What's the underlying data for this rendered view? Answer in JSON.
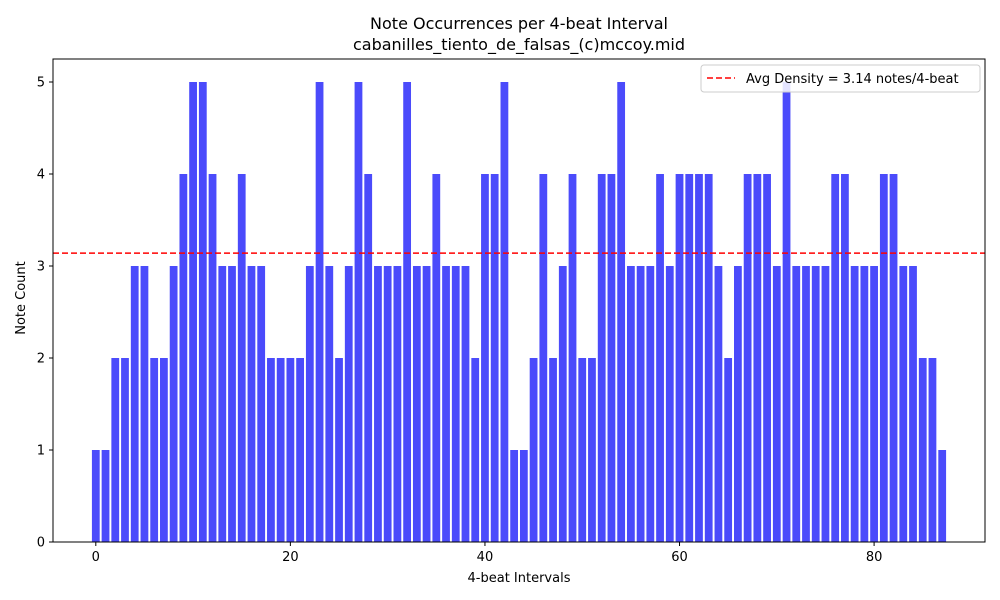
{
  "chart_data": {
    "type": "bar",
    "title": "Note Occurrences per 4-beat Interval",
    "subtitle": "cabanilles_tiento_de_falsas_(c)mccoy.mid",
    "xlabel": "4-beat Intervals",
    "ylabel": "Note Count",
    "xlim": [
      -4.4,
      91.4
    ],
    "ylim": [
      0,
      5.25
    ],
    "xticks": [
      0,
      20,
      40,
      60,
      80
    ],
    "yticks": [
      0,
      1,
      2,
      3,
      4,
      5
    ],
    "x": [
      0,
      1,
      2,
      3,
      4,
      5,
      6,
      7,
      8,
      9,
      10,
      11,
      12,
      13,
      14,
      15,
      16,
      17,
      18,
      19,
      20,
      21,
      22,
      23,
      24,
      25,
      26,
      27,
      28,
      29,
      30,
      31,
      32,
      33,
      34,
      35,
      36,
      37,
      38,
      39,
      40,
      41,
      42,
      43,
      44,
      45,
      46,
      47,
      48,
      49,
      50,
      51,
      52,
      53,
      54,
      55,
      56,
      57,
      58,
      59,
      60,
      61,
      62,
      63,
      64,
      65,
      66,
      67,
      68,
      69,
      70,
      71,
      72,
      73,
      74,
      75,
      76,
      77,
      78,
      79,
      80,
      81,
      82,
      83,
      84,
      85,
      86,
      87
    ],
    "values": [
      1,
      1,
      2,
      2,
      3,
      3,
      2,
      2,
      3,
      4,
      5,
      5,
      4,
      3,
      3,
      4,
      3,
      3,
      2,
      2,
      2,
      2,
      3,
      5,
      3,
      2,
      3,
      5,
      4,
      3,
      3,
      3,
      5,
      3,
      3,
      4,
      3,
      3,
      3,
      2,
      4,
      4,
      5,
      1,
      1,
      2,
      4,
      2,
      3,
      4,
      2,
      2,
      4,
      4,
      5,
      3,
      3,
      3,
      4,
      3,
      4,
      4,
      4,
      4,
      3,
      2,
      3,
      4,
      4,
      4,
      3,
      5,
      3,
      3,
      3,
      3,
      4,
      4,
      3,
      3,
      3,
      4,
      4,
      3,
      3,
      2,
      2,
      1
    ],
    "bar_color": "#4b4bfb",
    "grid": false,
    "reference_line": {
      "y": 3.14,
      "label": "Avg Density = 3.14 notes/4-beat",
      "color": "#ff0000",
      "style": "dashed"
    },
    "legend_position": "top-right"
  }
}
